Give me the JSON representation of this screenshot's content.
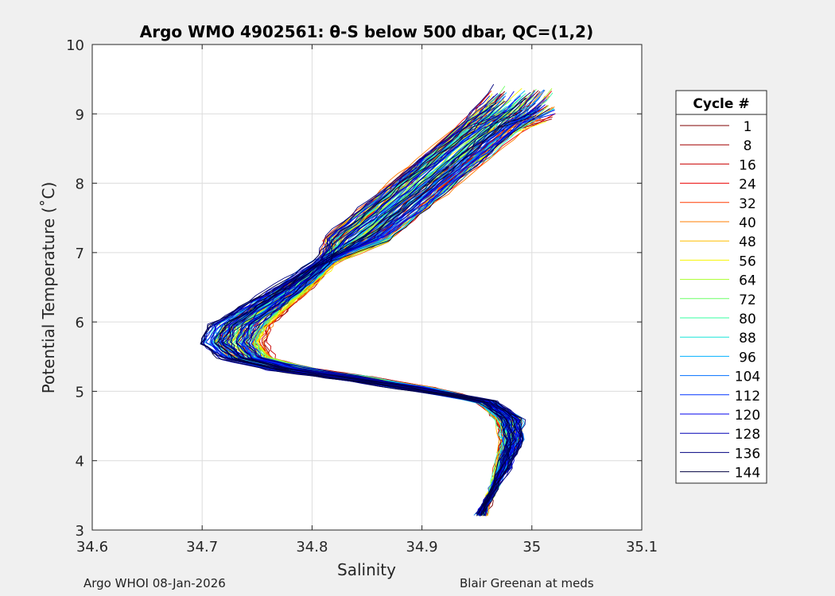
{
  "chart_data": {
    "type": "line",
    "title": "Argo WMO 4902561: θ-S below 500 dbar,  QC=(1,2)",
    "xlabel": "Salinity",
    "ylabel": "Potential Temperature (˚C)",
    "xlim": [
      34.6,
      35.1
    ],
    "ylim": [
      3,
      10
    ],
    "xticks": [
      "34.6",
      "34.7",
      "34.8",
      "34.9",
      "35",
      "35.1"
    ],
    "yticks": [
      "3",
      "4",
      "5",
      "6",
      "7",
      "8",
      "9",
      "10"
    ],
    "grid": true,
    "legend": {
      "title": "Cycle #",
      "placement": "right",
      "entries": [
        {
          "label": "1",
          "color": "#7f0000"
        },
        {
          "label": "8",
          "color": "#a30000"
        },
        {
          "label": "16",
          "color": "#c80000"
        },
        {
          "label": "24",
          "color": "#ec0000"
        },
        {
          "label": "32",
          "color": "#ff3a00"
        },
        {
          "label": "40",
          "color": "#ff7c00"
        },
        {
          "label": "48",
          "color": "#ffbd00"
        },
        {
          "label": "56",
          "color": "#f7f500"
        },
        {
          "label": "64",
          "color": "#a8ff2a"
        },
        {
          "label": "72",
          "color": "#6cff66"
        },
        {
          "label": "80",
          "color": "#36ffa0"
        },
        {
          "label": "88",
          "color": "#1ae6d8"
        },
        {
          "label": "96",
          "color": "#00b0ff"
        },
        {
          "label": "104",
          "color": "#0070ff"
        },
        {
          "label": "112",
          "color": "#0034ff"
        },
        {
          "label": "120",
          "color": "#0000ed"
        },
        {
          "label": "128",
          "color": "#0000b6"
        },
        {
          "label": "136",
          "color": "#00007f"
        },
        {
          "label": "144",
          "color": "#000040"
        }
      ]
    },
    "series_template": {
      "description_points": "Approximate mean theta-S profile (salinity, theta) shared by all cycles",
      "points": [
        [
          34.955,
          3.22
        ],
        [
          34.962,
          3.5
        ],
        [
          34.972,
          3.9
        ],
        [
          34.978,
          4.3
        ],
        [
          34.975,
          4.6
        ],
        [
          34.955,
          4.85
        ],
        [
          34.9,
          5.05
        ],
        [
          34.84,
          5.2
        ],
        [
          34.79,
          5.32
        ],
        [
          34.75,
          5.48
        ],
        [
          34.738,
          5.7
        ],
        [
          34.745,
          5.95
        ],
        [
          34.765,
          6.2
        ],
        [
          34.79,
          6.5
        ],
        [
          34.815,
          6.85
        ],
        [
          34.84,
          7.2
        ],
        [
          34.87,
          7.6
        ],
        [
          34.9,
          8.0
        ],
        [
          34.93,
          8.4
        ],
        [
          34.96,
          8.8
        ],
        [
          34.99,
          9.15
        ]
      ]
    },
    "footer_left": "Argo WHOI 08-Jan-2026",
    "footer_right": "Blair Greenan at meds"
  },
  "colors": {
    "axes_bg": "#ffffff",
    "figure_bg": "#f0f0f0",
    "grid": "#dcdcdc",
    "axis": "#262626"
  }
}
